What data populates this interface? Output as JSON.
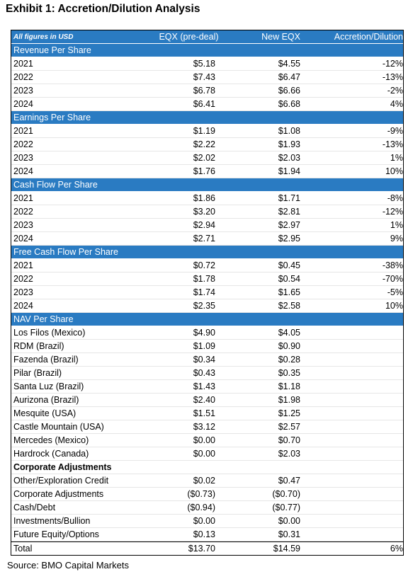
{
  "title": "Exhibit 1: Accretion/Dilution Analysis",
  "table": {
    "header": [
      "All figures in USD",
      "EQX (pre-deal)",
      "New EQX",
      "Accretion/Dilution"
    ],
    "sections": [
      {
        "title": "Revenue Per Share",
        "rows": [
          [
            "2021",
            "$5.18",
            "$4.55",
            "-12%"
          ],
          [
            "2022",
            "$7.43",
            "$6.47",
            "-13%"
          ],
          [
            "2023",
            "$6.78",
            "$6.66",
            "-2%"
          ],
          [
            "2024",
            "$6.41",
            "$6.68",
            "4%"
          ]
        ]
      },
      {
        "title": "Earnings Per Share",
        "rows": [
          [
            "2021",
            "$1.19",
            "$1.08",
            "-9%"
          ],
          [
            "2022",
            "$2.22",
            "$1.93",
            "-13%"
          ],
          [
            "2023",
            "$2.02",
            "$2.03",
            "1%"
          ],
          [
            "2024",
            "$1.76",
            "$1.94",
            "10%"
          ]
        ]
      },
      {
        "title": "Cash Flow Per  Share",
        "rows": [
          [
            "2021",
            "$1.86",
            "$1.71",
            "-8%"
          ],
          [
            "2022",
            "$3.20",
            "$2.81",
            "-12%"
          ],
          [
            "2023",
            "$2.94",
            "$2.97",
            "1%"
          ],
          [
            "2024",
            "$2.71",
            "$2.95",
            "9%"
          ]
        ]
      },
      {
        "title": "Free Cash Flow Per  Share",
        "rows": [
          [
            "2021",
            "$0.72",
            "$0.45",
            "-38%"
          ],
          [
            "2022",
            "$1.78",
            "$0.54",
            "-70%"
          ],
          [
            "2023",
            "$1.74",
            "$1.65",
            "-5%"
          ],
          [
            "2024",
            "$2.35",
            "$2.58",
            "10%"
          ]
        ]
      },
      {
        "title": "NAV Per Share",
        "rows": [
          [
            "Los Filos (Mexico)",
            "$4.90",
            "$4.05"
          ],
          [
            "RDM (Brazil)",
            "$1.09",
            "$0.90"
          ],
          [
            "Fazenda (Brazil)",
            "$0.34",
            "$0.28"
          ],
          [
            "Pilar (Brazil)",
            "$0.43",
            "$0.35"
          ],
          [
            "Santa Luz (Brazil)",
            "$1.43",
            "$1.18"
          ],
          [
            "Aurizona (Brazil)",
            "$2.40",
            "$1.98"
          ],
          [
            "Mesquite (USA)",
            "$1.51",
            "$1.25"
          ],
          [
            "Castle Mountain (USA)",
            "$3.12",
            "$2.57"
          ],
          [
            "Mercedes (Mexico)",
            "$0.00",
            "$0.70"
          ],
          [
            "Hardrock (Canada)",
            "$0.00",
            "$2.03"
          ]
        ],
        "subheading": "Corporate Adjustments",
        "subrows": [
          [
            "Other/Exploration Credit",
            "$0.02",
            "$0.47"
          ],
          [
            "Corporate Adjustments",
            "($0.73)",
            "($0.70)"
          ],
          [
            "Cash/Debt",
            "($0.94)",
            "($0.77)"
          ],
          [
            "Investments/Bullion",
            "$0.00",
            "$0.00"
          ],
          [
            "Future Equity/Options",
            "$0.13",
            "$0.31"
          ]
        ]
      }
    ],
    "total": [
      "Total",
      "$13.70",
      "$14.59",
      "6%"
    ]
  },
  "source": "Source: BMO Capital Markets"
}
